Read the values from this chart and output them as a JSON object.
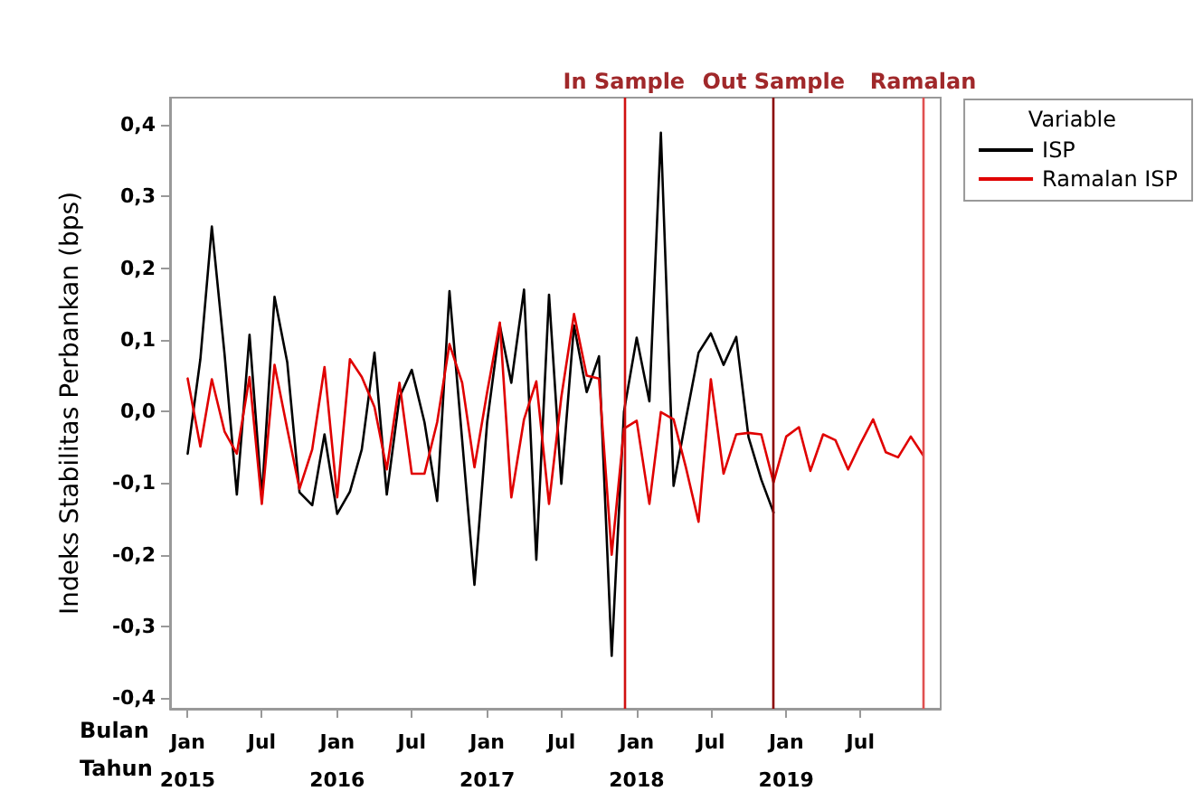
{
  "chart_data": {
    "type": "line",
    "ylabel": "Indeks Stabilitas Perbankan (bps)",
    "legend_title": "Variable",
    "annotations": [
      "Bulan",
      "Tahun"
    ],
    "x": [
      "2015-01",
      "2015-02",
      "2015-03",
      "2015-04",
      "2015-05",
      "2015-06",
      "2015-07",
      "2015-08",
      "2015-09",
      "2015-10",
      "2015-11",
      "2015-12",
      "2016-01",
      "2016-02",
      "2016-03",
      "2016-04",
      "2016-05",
      "2016-06",
      "2016-07",
      "2016-08",
      "2016-09",
      "2016-10",
      "2016-11",
      "2016-12",
      "2017-01",
      "2017-02",
      "2017-03",
      "2017-04",
      "2017-05",
      "2017-06",
      "2017-07",
      "2017-08",
      "2017-09",
      "2017-10",
      "2017-11",
      "2017-12",
      "2018-01",
      "2018-02",
      "2018-03",
      "2018-04",
      "2018-05",
      "2018-06",
      "2018-07",
      "2018-08",
      "2018-09",
      "2018-10",
      "2018-11",
      "2018-12",
      "2019-01",
      "2019-02",
      "2019-03",
      "2019-04",
      "2019-05",
      "2019-06",
      "2019-07",
      "2019-08",
      "2019-09",
      "2019-10",
      "2019-11",
      "2019-12"
    ],
    "series": [
      {
        "name": "ISP",
        "color": "#000000",
        "values": [
          -0.059,
          0.073,
          0.258,
          0.08,
          -0.116,
          0.107,
          -0.12,
          0.16,
          0.069,
          -0.113,
          -0.131,
          -0.032,
          -0.143,
          -0.112,
          -0.053,
          0.082,
          -0.116,
          0.02,
          0.058,
          -0.015,
          -0.125,
          0.168,
          -0.04,
          -0.242,
          -0.015,
          0.12,
          0.04,
          0.17,
          -0.207,
          0.163,
          -0.101,
          0.12,
          0.027,
          0.077,
          -0.341,
          0.0,
          0.103,
          0.014,
          0.389,
          -0.104,
          -0.011,
          0.082,
          0.109,
          0.065,
          0.104,
          -0.036,
          -0.095,
          -0.141,
          null,
          null,
          null,
          null,
          null,
          null,
          null,
          null,
          null,
          null,
          null,
          null
        ]
      },
      {
        "name": "Ramalan ISP",
        "color": "#e00000",
        "values": [
          0.046,
          -0.049,
          0.045,
          -0.028,
          -0.059,
          0.048,
          -0.129,
          0.065,
          -0.024,
          -0.108,
          -0.053,
          0.062,
          -0.12,
          0.073,
          0.048,
          0.006,
          -0.081,
          0.04,
          -0.087,
          -0.087,
          -0.015,
          0.094,
          0.04,
          -0.078,
          0.027,
          0.124,
          -0.12,
          -0.011,
          0.042,
          -0.129,
          0.02,
          0.136,
          0.05,
          0.046,
          -0.2,
          -0.024,
          -0.013,
          -0.129,
          -0.001,
          -0.011,
          -0.078,
          -0.154,
          0.045,
          -0.087,
          -0.032,
          -0.03,
          -0.032,
          -0.099,
          -0.035,
          -0.022,
          -0.083,
          -0.032,
          -0.04,
          -0.081,
          -0.045,
          -0.011,
          -0.057,
          -0.064,
          -0.035,
          -0.061
        ]
      }
    ],
    "xlim": [
      "2014-11-19",
      "2020-01-13"
    ],
    "xticks": [
      {
        "value": "2015-01",
        "label": "Jan\n2015"
      },
      {
        "value": "2015-07",
        "label": "Jul"
      },
      {
        "value": "2016-01",
        "label": "Jan\n2016"
      },
      {
        "value": "2016-07",
        "label": "Jul"
      },
      {
        "value": "2017-01",
        "label": "Jan\n2017"
      },
      {
        "value": "2017-07",
        "label": "Jul"
      },
      {
        "value": "2018-01",
        "label": "Jan\n2018"
      },
      {
        "value": "2018-07",
        "label": "Jul"
      },
      {
        "value": "2019-01",
        "label": "Jan\n2019"
      },
      {
        "value": "2019-07",
        "label": "Jul"
      }
    ],
    "ylim": [
      -0.415,
      0.438
    ],
    "yticks": [
      {
        "value": -0.4,
        "label": "-0,4"
      },
      {
        "value": -0.3,
        "label": "-0,3"
      },
      {
        "value": -0.2,
        "label": "-0,2"
      },
      {
        "value": -0.1,
        "label": "-0,1"
      },
      {
        "value": 0,
        "label": "0,0"
      },
      {
        "value": 0.1,
        "label": "0,1"
      },
      {
        "value": 0.2,
        "label": "0,2"
      },
      {
        "value": 0.3,
        "label": "0,3"
      },
      {
        "value": 0.4,
        "label": "0,4"
      }
    ],
    "ref_lines": [
      {
        "axis": "x",
        "value": "2017-12",
        "label": "In Sample",
        "color": "#d01010"
      },
      {
        "axis": "x",
        "value": "2018-12",
        "label": "Out Sample",
        "color": "#8b0000"
      },
      {
        "axis": "x",
        "value": "2019-12",
        "label": "Ramalan",
        "color": "#e05050"
      }
    ],
    "grid": false,
    "legend": "top right",
    "marker": "none",
    "line_style": "solid"
  }
}
